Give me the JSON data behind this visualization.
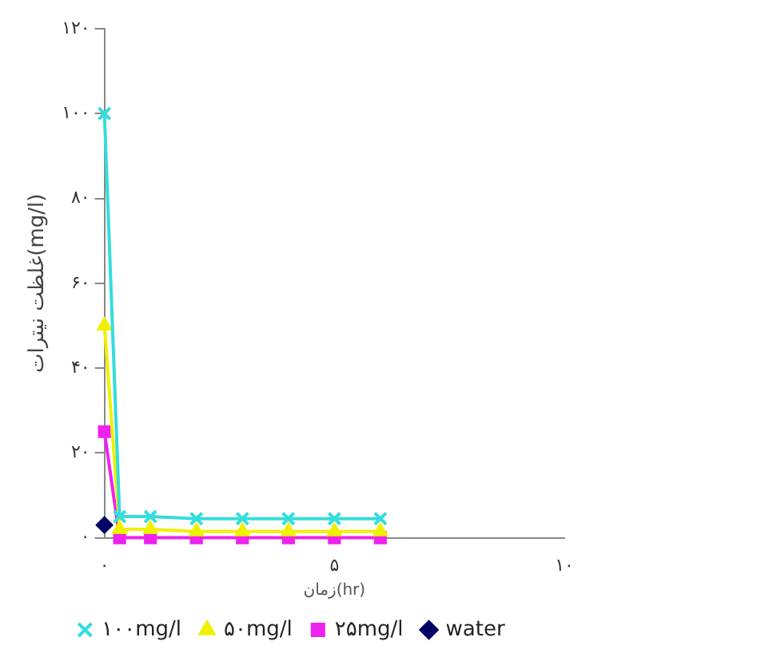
{
  "chart_data": {
    "type": "line",
    "xlabel": "زمان(hr)",
    "ylabel": "غلظت نیترات(mg/l)",
    "x": [
      0,
      0.33,
      1,
      2,
      3,
      4,
      5,
      6
    ],
    "series": [
      {
        "name": "۱۰۰mg/l",
        "color": "#33dddd",
        "marker": "cross",
        "values": [
          100,
          5,
          5,
          4.5,
          4.5,
          4.5,
          4.5,
          4.5
        ]
      },
      {
        "name": "۵۰mg/l",
        "color": "#f0f000",
        "marker": "triangle",
        "values": [
          50,
          2,
          2,
          1.5,
          1.5,
          1.5,
          1.5,
          1.5
        ]
      },
      {
        "name": "۲۵mg/l",
        "color": "#ee22ee",
        "marker": "square",
        "values": [
          25,
          0,
          0,
          0,
          0,
          0,
          0,
          0
        ]
      },
      {
        "name": "water",
        "color": "#000066",
        "marker": "diamond",
        "values": [
          3,
          null,
          null,
          null,
          null,
          null,
          null,
          null
        ]
      }
    ],
    "xlim": [
      0,
      10
    ],
    "xticks": [
      {
        "value": 0,
        "label": "۰"
      },
      {
        "value": 5,
        "label": "۵"
      },
      {
        "value": 10,
        "label": "۱۰"
      }
    ],
    "ylim": [
      0,
      120
    ],
    "yticks": [
      {
        "value": 0,
        "label": "۰"
      },
      {
        "value": 20,
        "label": "۲۰"
      },
      {
        "value": 40,
        "label": "۴۰"
      },
      {
        "value": 60,
        "label": "۶۰"
      },
      {
        "value": 80,
        "label": "۸۰"
      },
      {
        "value": 100,
        "label": "۱۰۰"
      },
      {
        "value": 120,
        "label": "۱۲۰"
      }
    ],
    "grid": false,
    "legend": "bottom",
    "line_style": "solid"
  }
}
